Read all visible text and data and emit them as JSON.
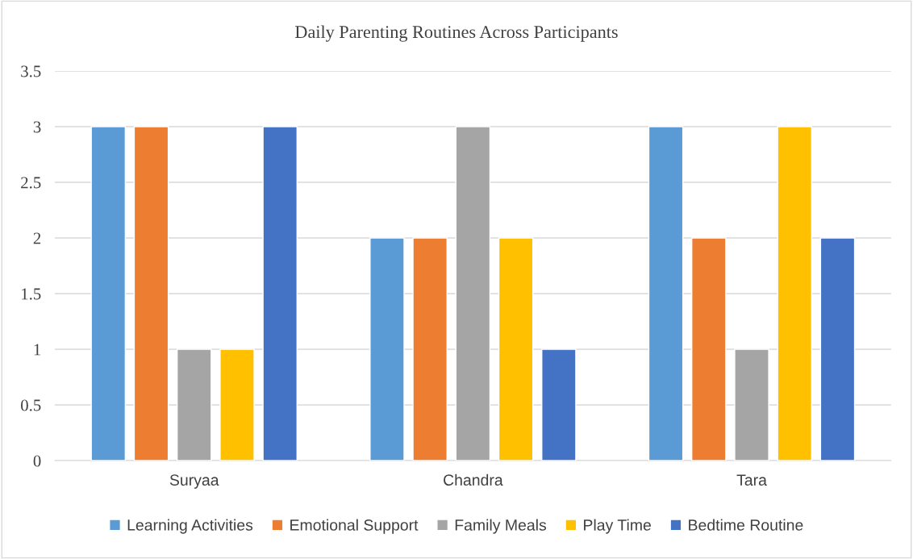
{
  "chart_data": {
    "type": "bar",
    "title": "Daily Parenting Routines Across Participants",
    "categories": [
      "Suryaa",
      "Chandra",
      "Tara"
    ],
    "series": [
      {
        "name": "Learning Activities",
        "color": "#5b9bd5",
        "values": [
          3,
          2,
          3
        ]
      },
      {
        "name": "Emotional Support",
        "color": "#ed7d31",
        "values": [
          3,
          2,
          2
        ]
      },
      {
        "name": "Family Meals",
        "color": "#a5a5a5",
        "values": [
          1,
          3,
          1
        ]
      },
      {
        "name": "Play Time",
        "color": "#ffc000",
        "values": [
          1,
          2,
          3
        ]
      },
      {
        "name": "Bedtime Routine",
        "color": "#4472c4",
        "values": [
          3,
          1,
          2
        ]
      }
    ],
    "ylim": [
      0,
      3.5
    ],
    "yticks": [
      0,
      0.5,
      1,
      1.5,
      2,
      2.5,
      3,
      3.5
    ],
    "grid": "y",
    "legend": "bottom"
  }
}
